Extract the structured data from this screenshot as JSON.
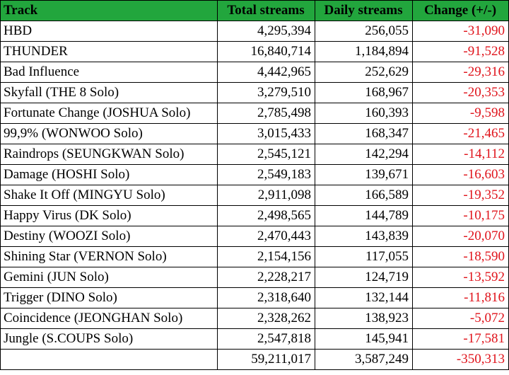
{
  "colors": {
    "header_bg": "#22a63d",
    "negative_change": "#e0131b"
  },
  "headers": {
    "track": "Track",
    "total": "Total streams",
    "daily": "Daily streams",
    "change": "Change (+/-)"
  },
  "rows": [
    {
      "track": "HBD",
      "total": "4,295,394",
      "daily": "256,055",
      "change": "-31,090"
    },
    {
      "track": "THUNDER",
      "total": "16,840,714",
      "daily": "1,184,894",
      "change": "-91,528"
    },
    {
      "track": "Bad Influence",
      "total": "4,442,965",
      "daily": "252,629",
      "change": "-29,316"
    },
    {
      "track": "Skyfall (THE 8 Solo)",
      "total": "3,279,510",
      "daily": "168,967",
      "change": "-20,353"
    },
    {
      "track": "Fortunate Change (JOSHUA Solo)",
      "total": "2,785,498",
      "daily": "160,393",
      "change": "-9,598"
    },
    {
      "track": "99,9% (WONWOO Solo)",
      "total": "3,015,433",
      "daily": "168,347",
      "change": "-21,465"
    },
    {
      "track": "Raindrops (SEUNGKWAN Solo)",
      "total": "2,545,121",
      "daily": "142,294",
      "change": "-14,112"
    },
    {
      "track": "Damage (HOSHI Solo)",
      "total": "2,549,183",
      "daily": "139,671",
      "change": "-16,603"
    },
    {
      "track": "Shake It Off (MINGYU Solo)",
      "total": "2,911,098",
      "daily": "166,589",
      "change": "-19,352"
    },
    {
      "track": "Happy Virus (DK Solo)",
      "total": "2,498,565",
      "daily": "144,789",
      "change": "-10,175"
    },
    {
      "track": "Destiny (WOOZI Solo)",
      "total": "2,470,443",
      "daily": "143,839",
      "change": "-20,070"
    },
    {
      "track": "Shining Star (VERNON Solo)",
      "total": "2,154,156",
      "daily": "117,055",
      "change": "-18,590"
    },
    {
      "track": "Gemini (JUN Solo)",
      "total": "2,228,217",
      "daily": "124,719",
      "change": "-13,592"
    },
    {
      "track": "Trigger (DINO Solo)",
      "total": "2,318,640",
      "daily": "132,144",
      "change": "-11,816"
    },
    {
      "track": "Coincidence (JEONGHAN Solo)",
      "total": "2,328,262",
      "daily": "138,923",
      "change": "-5,072"
    },
    {
      "track": "Jungle (S.COUPS Solo)",
      "total": "2,547,818",
      "daily": "145,941",
      "change": "-17,581"
    }
  ],
  "totals": {
    "track": "",
    "total": "59,211,017",
    "daily": "3,587,249",
    "change": "-350,313"
  }
}
